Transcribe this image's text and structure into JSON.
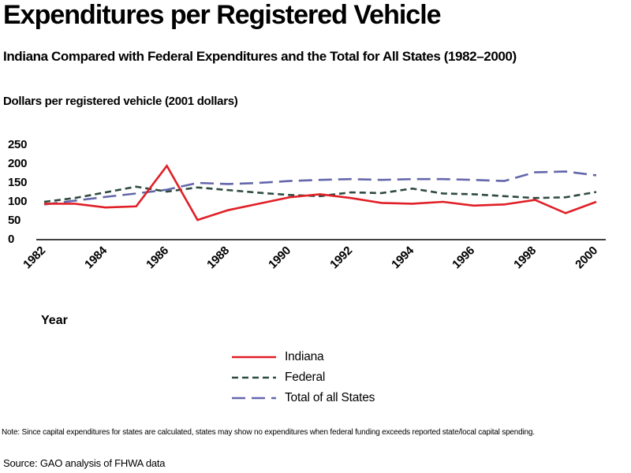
{
  "note": "Note:  Since capital expenditures for states are calculated, states may show no expenditures when federal funding exceeds reported state/local capital spending.",
  "source": "Source: GAO analysis of FHWA data",
  "chart_data": {
    "type": "line",
    "title": "Expenditures per Registered Vehicle",
    "subtitle": "Indiana Compared with Federal Expenditures and the Total for All States (1982–2000)",
    "ylabel": "Dollars per registered vehicle (2001 dollars)",
    "xlabel": "Year",
    "ylim": [
      0,
      250
    ],
    "y_ticks": [
      250,
      200,
      150,
      100,
      50,
      0
    ],
    "x": [
      1982,
      1983,
      1984,
      1985,
      1986,
      1987,
      1988,
      1989,
      1990,
      1991,
      1992,
      1993,
      1994,
      1995,
      1996,
      1997,
      1998,
      1999,
      2000
    ],
    "x_ticks": [
      "1982",
      "1984",
      "1986",
      "1988",
      "1990",
      "1992",
      "1994",
      "1996",
      "1998",
      "2000"
    ],
    "grid": false,
    "legend_position": "bottom-center",
    "series": [
      {
        "name": "Indiana",
        "color": "#e01f26",
        "style": "solid",
        "values": [
          95,
          95,
          85,
          88,
          195,
          52,
          78,
          95,
          112,
          120,
          110,
          97,
          95,
          100,
          90,
          93,
          105,
          70,
          100
        ]
      },
      {
        "name": "Federal",
        "color": "#2e4b3f",
        "style": "dashed",
        "values": [
          100,
          110,
          125,
          140,
          127,
          138,
          131,
          124,
          118,
          115,
          125,
          123,
          135,
          122,
          120,
          115,
          110,
          112,
          126
        ]
      },
      {
        "name": "Total of all States",
        "color": "#6467ab",
        "style": "long-dash",
        "values": [
          93,
          103,
          113,
          122,
          132,
          150,
          147,
          150,
          155,
          158,
          160,
          158,
          160,
          160,
          158,
          155,
          178,
          180,
          170
        ]
      }
    ]
  }
}
